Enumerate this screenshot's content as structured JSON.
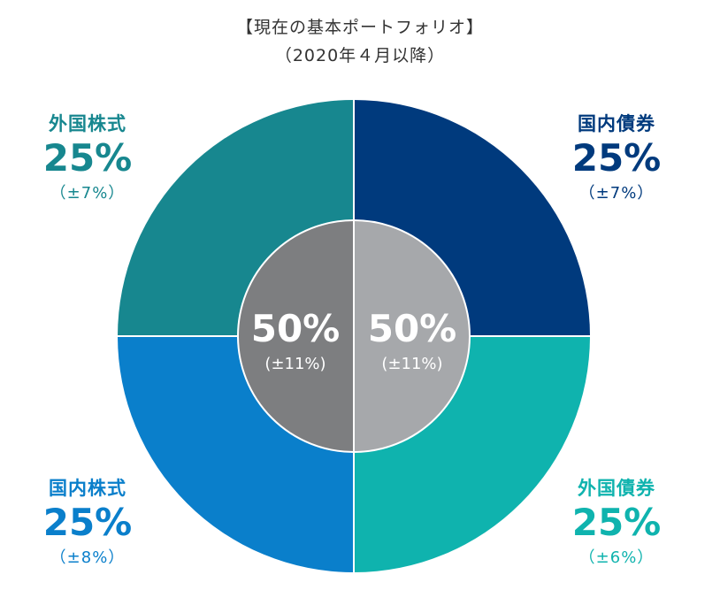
{
  "header": {
    "title": "【現在の基本ポートフォリオ】",
    "subtitle": "（2020年４月以降）"
  },
  "chart_data": {
    "type": "pie",
    "title": "【現在の基本ポートフォリオ】",
    "subtitle": "（2020年４月以降）",
    "outer_ring": [
      {
        "name": "国内債券",
        "value": 25,
        "value_label": "25%",
        "range_label": "（±7%）",
        "color": "#003a7d"
      },
      {
        "name": "外国債券",
        "value": 25,
        "value_label": "25%",
        "range_label": "（±6%）",
        "color": "#0fb3ae"
      },
      {
        "name": "国内株式",
        "value": 25,
        "value_label": "25%",
        "range_label": "（±8%）",
        "color": "#0a7fcb"
      },
      {
        "name": "外国株式",
        "value": 25,
        "value_label": "25%",
        "range_label": "（±7%）",
        "color": "#17878f"
      }
    ],
    "inner_ring": [
      {
        "value": 50,
        "value_label": "50%",
        "range_label": "(±11%)",
        "color": "#a6a8ab"
      },
      {
        "value": 50,
        "value_label": "50%",
        "range_label": "(±11%)",
        "color": "#7d7e80"
      }
    ]
  }
}
